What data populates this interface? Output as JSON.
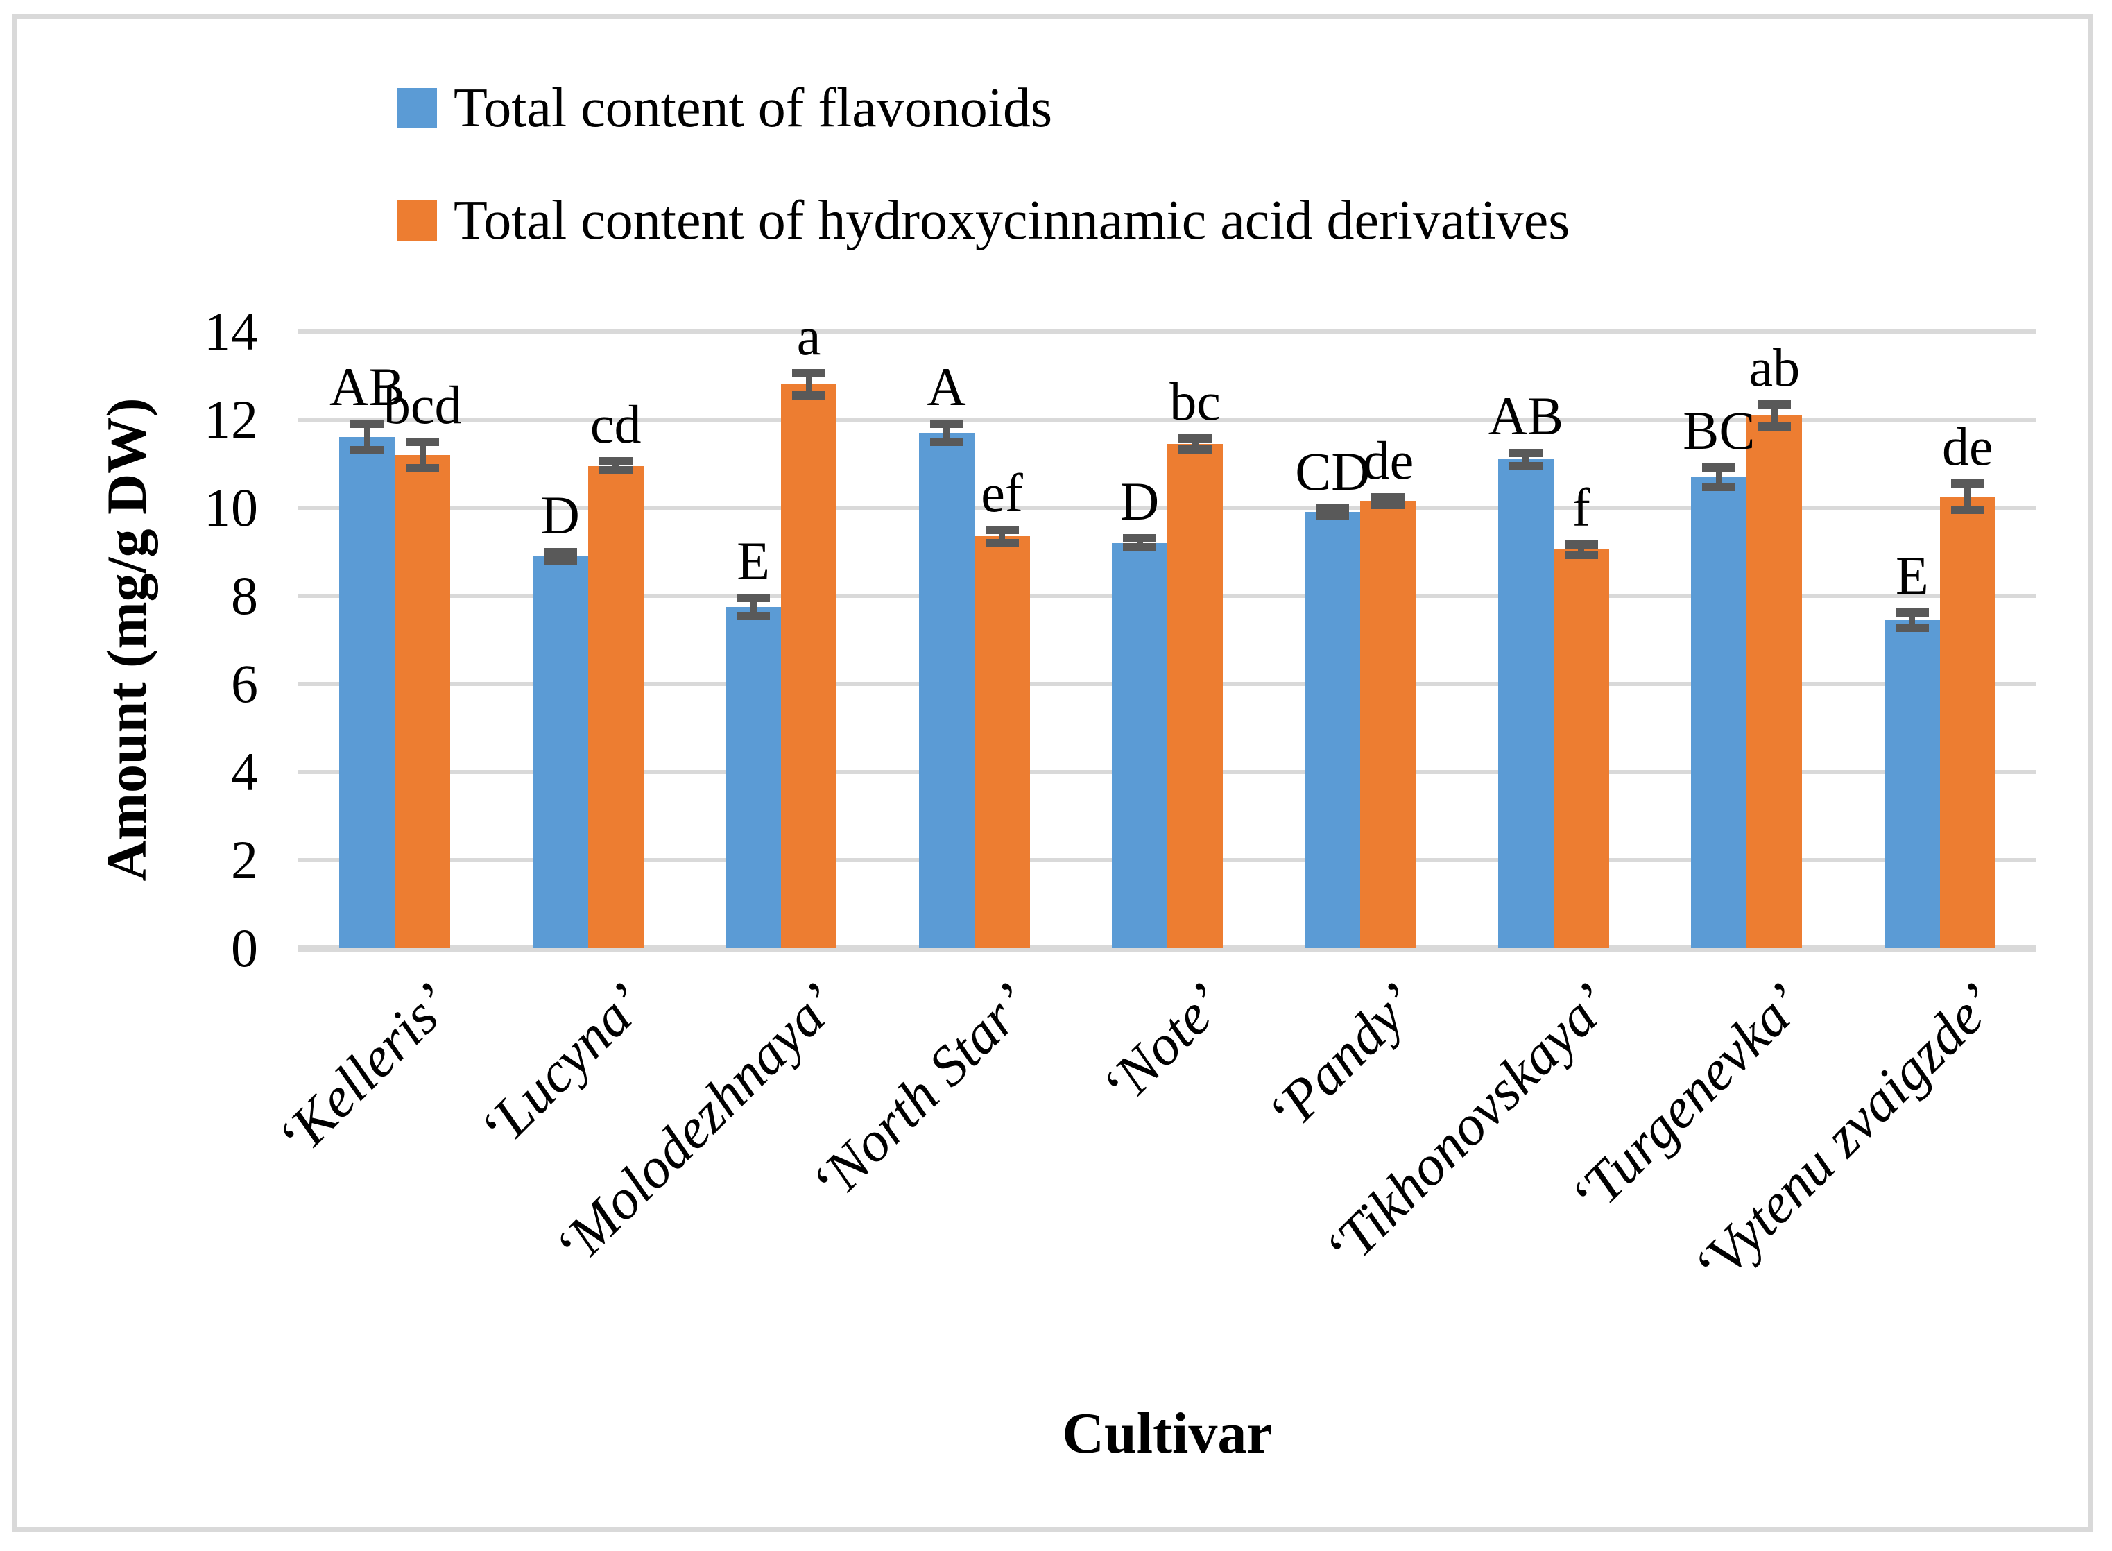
{
  "figure": {
    "background": "#FFFFFF",
    "border_color": "#D9D9D9"
  },
  "legend": {
    "position": "top-left",
    "items": [
      {
        "label": "Total content of flavonoids",
        "color": "#5B9BD5"
      },
      {
        "label": "Total content of hydroxycinnamic acid derivatives",
        "color": "#ED7D31"
      }
    ]
  },
  "chart_data": {
    "type": "bar",
    "title": "",
    "xlabel": "Cultivar",
    "ylabel": "Amount (mg/g DW)",
    "ylim": [
      0,
      14
    ],
    "yticks": [
      0,
      2,
      4,
      6,
      8,
      10,
      12,
      14
    ],
    "grid": "horizontal",
    "gridline_color": "#D9D9D9",
    "error_bar_color": "#595959",
    "legend_position": "top-left",
    "categories": [
      "‘Kelleris’",
      "‘Lucyna’",
      "‘Molodezhnaya’",
      "‘North Star’",
      "‘Note’",
      "‘Pandy’",
      "‘Tikhonovskaya’",
      "‘Turgenevka’",
      "‘Vytenu zvaigzde’"
    ],
    "series": [
      {
        "name": "Total content of flavonoids",
        "color": "#5B9BD5",
        "values": [
          11.6,
          8.9,
          7.75,
          11.7,
          9.2,
          9.9,
          11.1,
          10.7,
          7.45
        ],
        "errors": [
          0.3,
          0.1,
          0.2,
          0.2,
          0.1,
          0.08,
          0.15,
          0.22,
          0.17
        ],
        "letters": [
          "AB",
          "D",
          "E",
          "A",
          "D",
          "CD",
          "AB",
          "BC",
          "E"
        ]
      },
      {
        "name": "Total content of hydroxycinnamic acid derivatives",
        "color": "#ED7D31",
        "values": [
          11.2,
          10.95,
          12.8,
          9.35,
          11.45,
          10.15,
          9.05,
          12.1,
          10.25
        ],
        "errors": [
          0.3,
          0.1,
          0.25,
          0.15,
          0.12,
          0.08,
          0.12,
          0.25,
          0.3
        ],
        "letters": [
          "bcd",
          "cd",
          "a",
          "ef",
          "bc",
          "de",
          "f",
          "ab",
          "de"
        ]
      }
    ]
  }
}
